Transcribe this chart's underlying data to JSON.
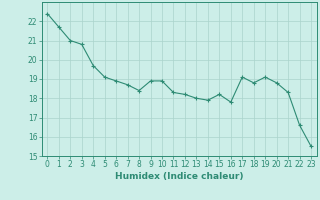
{
  "x": [
    0,
    1,
    2,
    3,
    4,
    5,
    6,
    7,
    8,
    9,
    10,
    11,
    12,
    13,
    14,
    15,
    16,
    17,
    18,
    19,
    20,
    21,
    22,
    23
  ],
  "y": [
    22.4,
    21.7,
    21.0,
    20.8,
    19.7,
    19.1,
    18.9,
    18.7,
    18.4,
    18.9,
    18.9,
    18.3,
    18.2,
    18.0,
    17.9,
    18.2,
    17.8,
    19.1,
    18.8,
    19.1,
    18.8,
    18.3,
    16.6,
    15.5
  ],
  "line_color": "#2e8b74",
  "marker": "+",
  "marker_size": 3,
  "bg_color": "#cceee8",
  "grid_color": "#aad4cc",
  "xlabel": "Humidex (Indice chaleur)",
  "ylim": [
    15,
    23
  ],
  "xlim": [
    -0.5,
    23.5
  ],
  "yticks": [
    15,
    16,
    17,
    18,
    19,
    20,
    21,
    22
  ],
  "xticks": [
    0,
    1,
    2,
    3,
    4,
    5,
    6,
    7,
    8,
    9,
    10,
    11,
    12,
    13,
    14,
    15,
    16,
    17,
    18,
    19,
    20,
    21,
    22,
    23
  ],
  "label_fontsize": 6.5,
  "tick_fontsize": 5.5,
  "line_width": 0.8
}
